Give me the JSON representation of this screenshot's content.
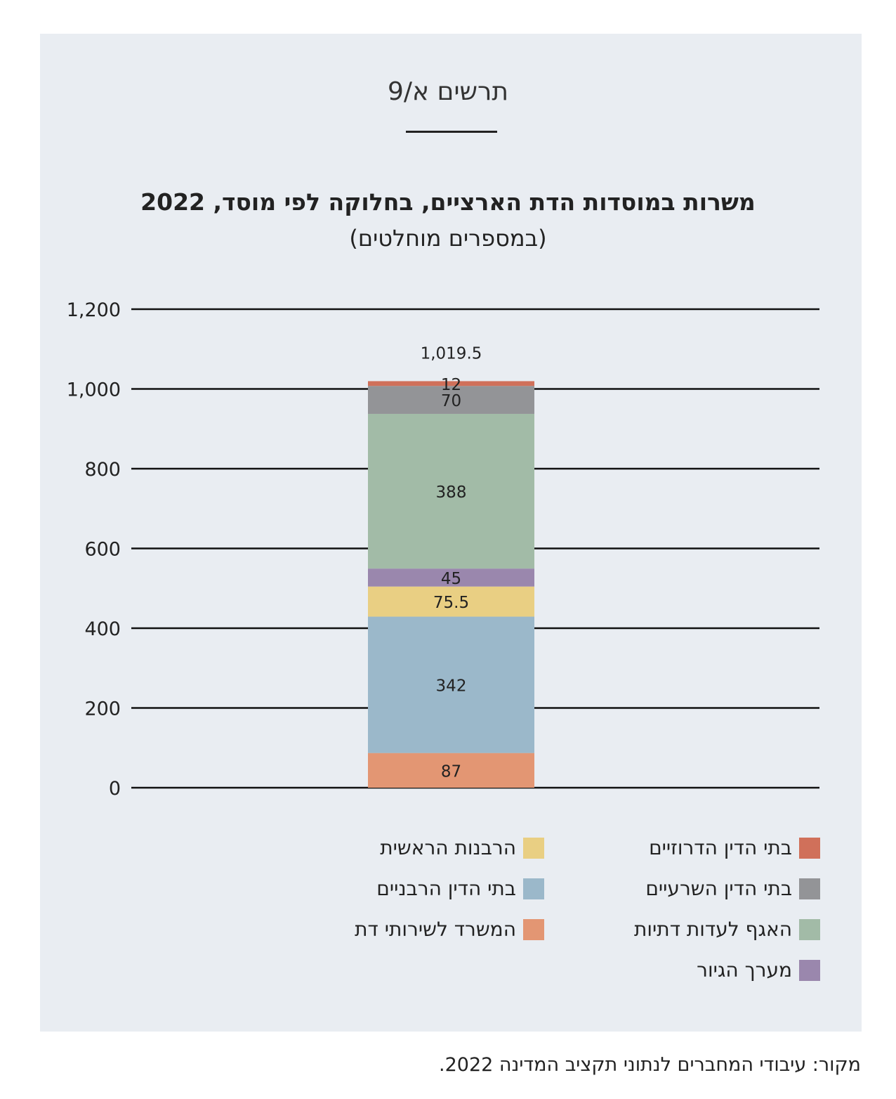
{
  "figure_label": "תרשים א/9",
  "source_note": "מקור: עיבודי המחברים לנתוני תקציב המדינה 2022.",
  "chart_data": {
    "type": "bar",
    "stacked": true,
    "title": "משרות במוסדות הדת הארציים, בחלוקה לפי מוסד, 2022",
    "subtitle": "(במספרים מוחלטים)",
    "categories": [
      ""
    ],
    "ylim": [
      0,
      1200
    ],
    "yticks": [
      "0",
      "200",
      "400",
      "600",
      "800",
      "1,000",
      "1,200"
    ],
    "grid": true,
    "legend_position": "bottom",
    "total_label": "1,019.5",
    "series": [
      {
        "name": "המשרד לשירותי דת",
        "values": [
          87
        ],
        "label": "87",
        "color": "#e39673"
      },
      {
        "name": "בתי הדין הרבניים",
        "values": [
          342
        ],
        "label": "342",
        "color": "#9bb8ca"
      },
      {
        "name": "הרבנות הראשית",
        "values": [
          75.5
        ],
        "label": "75.5",
        "color": "#e9cf83"
      },
      {
        "name": "מערך הגיור",
        "values": [
          45
        ],
        "label": "45",
        "color": "#9a87ad"
      },
      {
        "name": "האגף לעדות דתיות",
        "values": [
          388
        ],
        "label": "388",
        "color": "#a2bba7"
      },
      {
        "name": "בתי הדין השרעיים",
        "values": [
          70
        ],
        "label": "70",
        "color": "#939497"
      },
      {
        "name": "בתי הדין הדרוזיים",
        "values": [
          12
        ],
        "label": "12",
        "color": "#d0705a"
      }
    ],
    "legend_columns": [
      [
        "בתי הדין הדרוזיים",
        "בתי הדין השרעיים",
        "האגף לעדות דתיות",
        "מערך הגיור"
      ],
      [
        "הרבנות הראשית",
        "בתי הדין הרבניים",
        "המשרד לשירותי דת"
      ]
    ]
  }
}
